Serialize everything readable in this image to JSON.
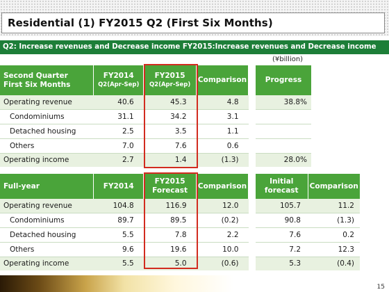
{
  "title": "Residential (1) FY2015 Q2 (First Six Months)",
  "subtitle": "Q2: Increase revenues and Decrease income FY2015:Increase revenues and Decrease income",
  "unit": "(¥billion)",
  "q2_table": {
    "headers": {
      "label_line1": "Second Quarter",
      "label_line2": "First Six Months",
      "fy2014_line1": "FY2014",
      "fy2014_line2": "Q2(Apr-Sep)",
      "fy2015_line1": "FY2015",
      "fy2015_line2": "Q2(Apr-Sep)",
      "comparison": "Comparison"
    },
    "rows": [
      {
        "label": "Operating revenue",
        "fy2014": "40.6",
        "fy2015": "45.3",
        "comparison": "4.8"
      },
      {
        "label": "Condominiums",
        "fy2014": "31.1",
        "fy2015": "34.2",
        "comparison": "3.1"
      },
      {
        "label": "Detached housing",
        "fy2014": "2.5",
        "fy2015": "3.5",
        "comparison": "1.1"
      },
      {
        "label": "Others",
        "fy2014": "7.0",
        "fy2015": "7.6",
        "comparison": "0.6"
      },
      {
        "label": "Operating income",
        "fy2014": "2.7",
        "fy2015": "1.4",
        "comparison": "(1.3)"
      }
    ]
  },
  "progress_table": {
    "header": "Progress",
    "rows": [
      "38.8%",
      "",
      "",
      "",
      "28.0%"
    ]
  },
  "fy_table": {
    "headers": {
      "label": "Full-year",
      "fy2014": "FY2014",
      "fy2015_line1": "FY2015",
      "fy2015_line2": "Forecast",
      "comparison": "Comparison"
    },
    "rows": [
      {
        "label": "Operating revenue",
        "fy2014": "104.8",
        "fy2015": "116.9",
        "comparison": "12.0"
      },
      {
        "label": "Condominiums",
        "fy2014": "89.7",
        "fy2015": "89.5",
        "comparison": "(0.2)"
      },
      {
        "label": "Detached housing",
        "fy2014": "5.5",
        "fy2015": "7.8",
        "comparison": "2.2"
      },
      {
        "label": "Others",
        "fy2014": "9.6",
        "fy2015": "19.6",
        "comparison": "10.0"
      },
      {
        "label": "Operating income",
        "fy2014": "5.5",
        "fy2015": "5.0",
        "comparison": "(0.6)"
      }
    ]
  },
  "initial_table": {
    "headers": {
      "initial_line1": "Initial",
      "initial_line2": "forecast",
      "comparison": "Comparison"
    },
    "rows": [
      {
        "initial": "105.7",
        "comparison": "11.2"
      },
      {
        "initial": "90.8",
        "comparison": "(1.3)"
      },
      {
        "initial": "7.6",
        "comparison": "0.2"
      },
      {
        "initial": "7.2",
        "comparison": "12.3"
      },
      {
        "initial": "5.3",
        "comparison": "(0.4)"
      }
    ]
  },
  "page_number": "15"
}
